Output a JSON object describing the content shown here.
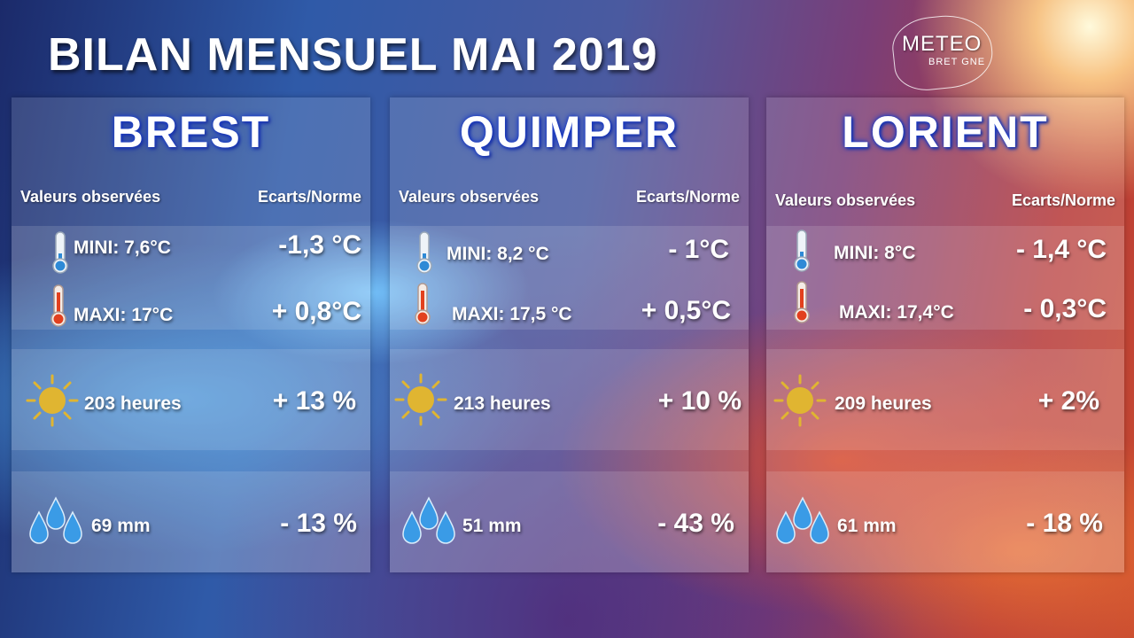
{
  "title": "BILAN MENSUEL MAI 2019",
  "logo": {
    "line1": "METEO",
    "line2": "BRET GNE"
  },
  "headers": {
    "observed": "Valeurs observées",
    "deviation": "Ecarts/Norme"
  },
  "cities": [
    {
      "name": "BREST",
      "min": {
        "label": "MINI: 7,6°C",
        "deviation": "-1,3 °C"
      },
      "max": {
        "label": "MAXI: 17°C",
        "deviation": "+ 0,8°C"
      },
      "sun": {
        "label": "203  heures",
        "deviation": "+ 13 %"
      },
      "rain": {
        "label": "69 mm",
        "deviation": "- 13 %"
      }
    },
    {
      "name": "QUIMPER",
      "min": {
        "label": "MINI:  8,2 °C",
        "deviation": "- 1°C"
      },
      "max": {
        "label": "MAXI: 17,5 °C",
        "deviation": "+  0,5°C"
      },
      "sun": {
        "label": "213 heures",
        "deviation": "+ 10 %"
      },
      "rain": {
        "label": "51  mm",
        "deviation": "- 43 %"
      }
    },
    {
      "name": "LORIENT",
      "min": {
        "label": "MINI: 8°C",
        "deviation": "- 1,4 °C"
      },
      "max": {
        "label": "MAXI: 17,4°C",
        "deviation": "- 0,3°C"
      },
      "sun": {
        "label": "209 heures",
        "deviation": "+ 2%"
      },
      "rain": {
        "label": "61 mm",
        "deviation": "- 18 %"
      }
    }
  ],
  "icons": {
    "thermometer_cold": "thermometer-cold-icon",
    "thermometer_hot": "thermometer-hot-icon",
    "sun": "sun-icon",
    "rain": "raindrops-icon"
  },
  "colors": {
    "cold": "#2e8ad6",
    "hot": "#e2401e",
    "sun": "#e0b531",
    "drop": "#3a9be6",
    "city_glow": "#1a3cc8"
  }
}
